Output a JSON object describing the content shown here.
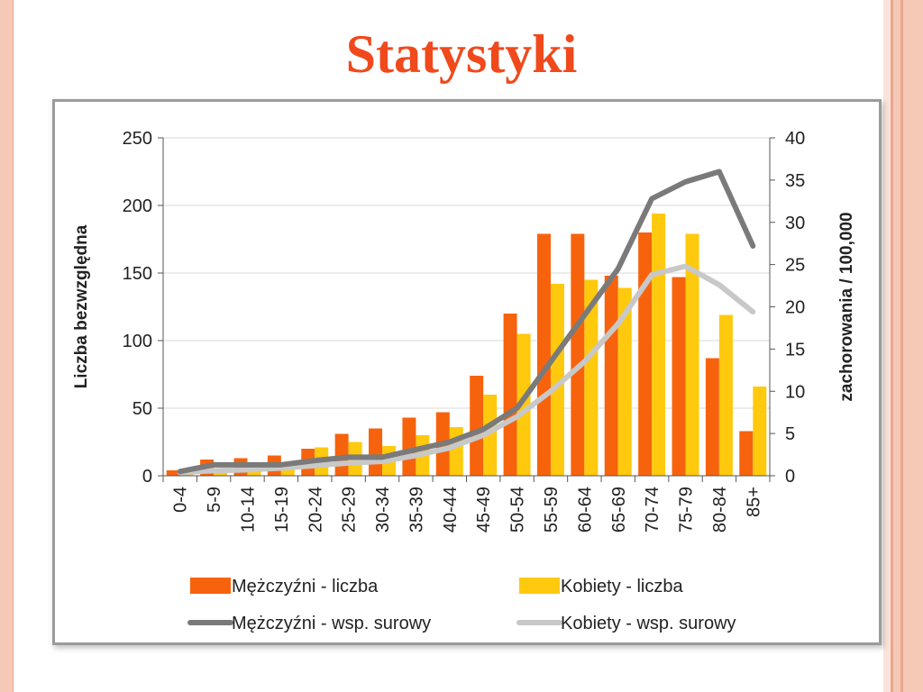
{
  "slide": {
    "title": "Statystyki"
  },
  "colors": {
    "title": "#f0491c",
    "men_bar": "#f7630c",
    "women_bar": "#ffc90e",
    "men_line": "#7a7a7a",
    "women_line": "#c8c8c8",
    "border_light": "#f6c9b7",
    "border_dark": "#e9a88f"
  },
  "chart_data": {
    "type": "bar",
    "title": "",
    "xlabel": "",
    "ylabel": "Liczba bezwzględna",
    "y2label": "zachorowania / 100,000",
    "ylim": [
      0,
      250
    ],
    "y2lim": [
      0,
      40
    ],
    "yticks": [
      "0",
      "50",
      "100",
      "150",
      "200",
      "250"
    ],
    "y2ticks": [
      "0",
      "5",
      "10",
      "15",
      "20",
      "25",
      "30",
      "35",
      "40"
    ],
    "grid": true,
    "legend_position": "bottom",
    "categories": [
      "0-4",
      "5-9",
      "10-14",
      "15-19",
      "20-24",
      "25-29",
      "30-34",
      "35-39",
      "40-44",
      "45-49",
      "50-54",
      "55-59",
      "60-64",
      "65-69",
      "70-74",
      "75-79",
      "80-84",
      "85+"
    ],
    "series": [
      {
        "name": "Mężczyźni - liczba",
        "kind": "bar",
        "axis": "left",
        "values": [
          4,
          12,
          13,
          15,
          20,
          31,
          35,
          43,
          47,
          74,
          120,
          179,
          179,
          148,
          180,
          147,
          87,
          33
        ]
      },
      {
        "name": "Kobiety - liczba",
        "kind": "bar",
        "axis": "left",
        "values": [
          2,
          5,
          6,
          10,
          21,
          25,
          22,
          30,
          36,
          60,
          105,
          142,
          145,
          139,
          194,
          179,
          119,
          66
        ]
      },
      {
        "name": "Mężczyźni - wsp. surowy",
        "kind": "line",
        "axis": "right",
        "values": [
          0.5,
          1.3,
          1.3,
          1.3,
          1.8,
          2.2,
          2.2,
          3.1,
          4.0,
          5.5,
          8.0,
          13.5,
          19.0,
          24.5,
          32.8,
          34.8,
          36.0,
          27.2
        ]
      },
      {
        "name": "Kobiety - wsp. surowy",
        "kind": "line",
        "axis": "right",
        "values": [
          0.4,
          0.6,
          0.7,
          0.9,
          1.2,
          1.5,
          1.7,
          2.4,
          3.3,
          4.8,
          7.0,
          10.0,
          13.5,
          18.0,
          23.8,
          24.8,
          22.6,
          19.4
        ]
      }
    ]
  }
}
